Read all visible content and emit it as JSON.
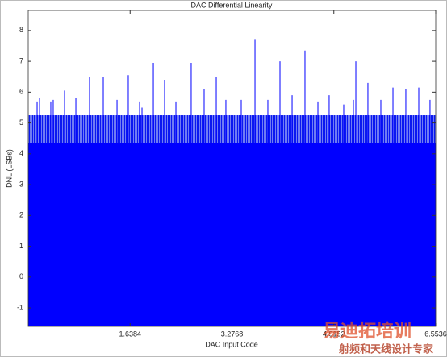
{
  "chart_data": {
    "type": "stem",
    "title": "DAC Differential Linearity",
    "x_label": "DAC Input Code",
    "y_label": "DNL (LSBs)",
    "xlim": [
      0,
      6.5536
    ],
    "xticks": [
      1.6384,
      3.2768,
      4.9152,
      6.5536
    ],
    "ylim": [
      -1.6,
      8.65
    ],
    "yticks": [
      -1,
      0,
      1,
      2,
      3,
      4,
      5,
      6,
      7,
      8
    ],
    "color": "#0000ff",
    "bands": [
      {
        "top": 4.35,
        "color": "#0000ff"
      },
      {
        "top": 5.25,
        "color": "#3a4cf2"
      }
    ],
    "x": [
      0.143,
      0.182,
      0.363,
      0.402,
      0.584,
      0.766,
      0.986,
      1.207,
      1.428,
      1.609,
      1.791,
      1.83,
      2.012,
      2.193,
      2.375,
      2.621,
      2.829,
      3.024,
      3.179,
      3.426,
      3.647,
      3.854,
      4.049,
      4.244,
      4.451,
      4.659,
      4.84,
      5.074,
      5.23,
      5.269,
      5.463,
      5.671,
      5.866,
      6.073,
      6.281,
      6.462
    ],
    "values": [
      5.7,
      5.8,
      5.7,
      5.75,
      6.05,
      5.8,
      6.5,
      6.5,
      5.75,
      6.55,
      5.7,
      5.5,
      6.95,
      6.4,
      5.7,
      6.95,
      6.1,
      6.5,
      5.75,
      5.75,
      7.7,
      5.75,
      7.0,
      5.9,
      7.35,
      5.7,
      5.9,
      5.6,
      5.75,
      7.0,
      6.3,
      5.75,
      6.15,
      6.1,
      6.15,
      5.75
    ],
    "watermark": "易迪拓培训",
    "watermark_sub": "射频和天线设计专家"
  }
}
